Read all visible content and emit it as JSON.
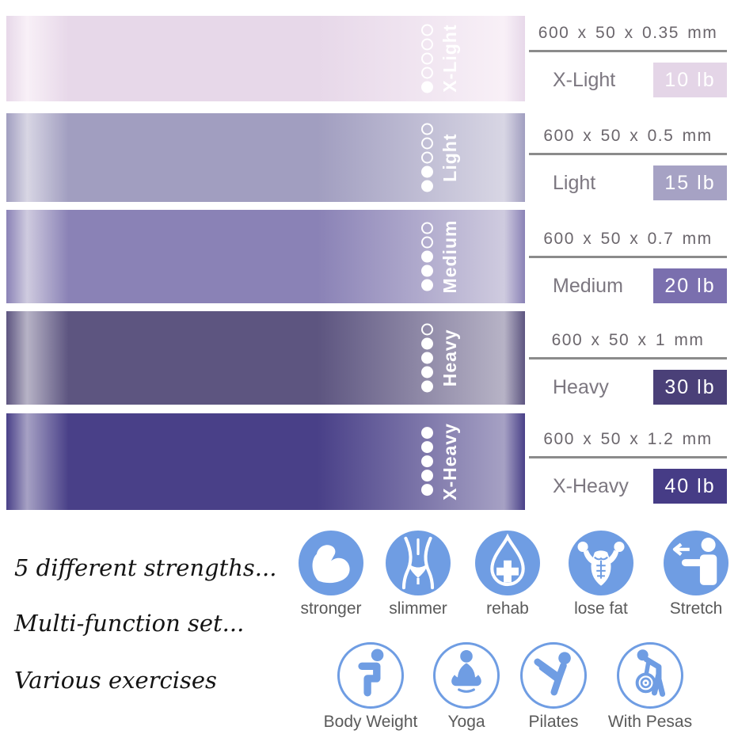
{
  "bands": [
    {
      "name": "X-Light",
      "dimensions": "600 x 50 x 0.35 mm",
      "weight": "10 lb",
      "strength_dots_filled": 1,
      "strength_dots_total": 5,
      "band_color": "#e7d8e9",
      "band_edge_light": "#f8f0f7",
      "badge_color": "#e4d5e7"
    },
    {
      "name": "Light",
      "dimensions": "600 x 50 x 0.5 mm",
      "weight": "15 lb",
      "strength_dots_filled": 2,
      "strength_dots_total": 5,
      "band_color": "#a19ec0",
      "band_edge_light": "#d8d6e4",
      "badge_color": "#a6a2c4"
    },
    {
      "name": "Medium",
      "dimensions": "600 x 50 x 0.7 mm",
      "weight": "20 lb",
      "strength_dots_filled": 3,
      "strength_dots_total": 5,
      "band_color": "#8a82b6",
      "band_edge_light": "#cfcbdf",
      "badge_color": "#7a6fae"
    },
    {
      "name": "Heavy",
      "dimensions": "600 x 50 x 1 mm",
      "weight": "30 lb",
      "strength_dots_filled": 4,
      "strength_dots_total": 5,
      "band_color": "#5d5580",
      "band_edge_light": "#b7b3c6",
      "badge_color": "#4a4078"
    },
    {
      "name": "X-Heavy",
      "dimensions": "600 x 50 x 1.2 mm",
      "weight": "40 lb",
      "strength_dots_filled": 5,
      "strength_dots_total": 5,
      "band_color": "#494088",
      "band_edge_light": "#a6a1c4",
      "badge_color": "#463c86"
    }
  ],
  "features": [
    "5 different strengths...",
    "Multi-function set...",
    "Various exercises"
  ],
  "benefit_icons": [
    {
      "label": "stronger",
      "icon": "bicep-icon"
    },
    {
      "label": "slimmer",
      "icon": "slim-waist-icon"
    },
    {
      "label": "rehab",
      "icon": "water-drop-cross-icon"
    },
    {
      "label": "lose fat",
      "icon": "muscle-torso-icon"
    },
    {
      "label": "Stretch",
      "icon": "arm-stretch-icon"
    }
  ],
  "exercise_icons": [
    {
      "label": "Body Weight",
      "icon": "squat-icon"
    },
    {
      "label": "Yoga",
      "icon": "lotus-pose-icon"
    },
    {
      "label": "Pilates",
      "icon": "v-sit-icon"
    },
    {
      "label": "With Pesas",
      "icon": "kettlebell-lift-icon"
    }
  ],
  "colors": {
    "icon_blue": "#6f9de3",
    "rule_gray": "#8b8b8b",
    "dimension_text": "#6b666c",
    "name_text": "#7c7780",
    "icon_label_text": "#5a5a5a",
    "badge_text": "#ffffff",
    "dot_white": "#ffffff"
  }
}
